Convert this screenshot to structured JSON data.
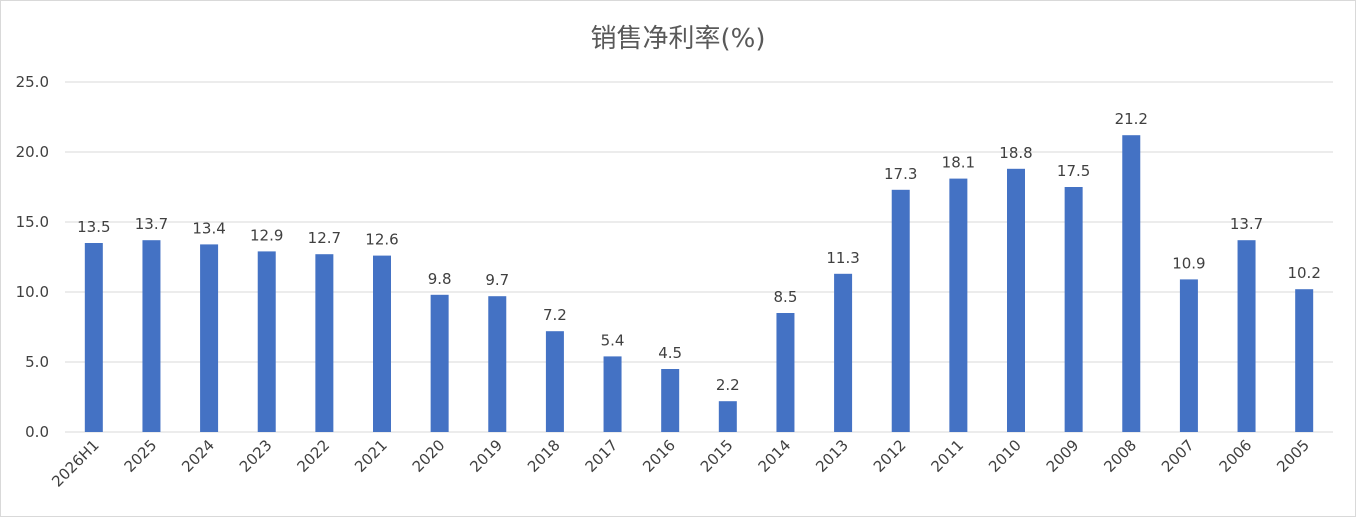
{
  "chart_data": {
    "type": "bar",
    "title": "销售净利率(%)",
    "xlabel": "",
    "ylabel": "",
    "categories": [
      "2026H1",
      "2025",
      "2024",
      "2023",
      "2022",
      "2021",
      "2020",
      "2019",
      "2018",
      "2017",
      "2016",
      "2015",
      "2014",
      "2013",
      "2012",
      "2011",
      "2010",
      "2009",
      "2008",
      "2007",
      "2006",
      "2005"
    ],
    "values": [
      13.5,
      13.7,
      13.4,
      12.9,
      12.7,
      12.6,
      9.8,
      9.7,
      7.2,
      5.4,
      4.5,
      2.2,
      8.5,
      11.3,
      17.3,
      18.1,
      18.8,
      17.5,
      21.2,
      10.9,
      13.7,
      10.2
    ],
    "data_labels": [
      "13.5",
      "13.7",
      "13.4",
      "12.9",
      "12.7",
      "12.6",
      "9.8",
      "9.7",
      "7.2",
      "5.4",
      "4.5",
      "2.2",
      "8.5",
      "11.3",
      "17.3",
      "18.1",
      "18.8",
      "17.5",
      "21.2",
      "10.9",
      "13.7",
      "10.2"
    ],
    "ylim": [
      0,
      25
    ],
    "yticks": [
      "0.0",
      "5.0",
      "10.0",
      "15.0",
      "20.0",
      "25.0"
    ],
    "grid": true,
    "legend": "none",
    "bar_color": "#4472C4"
  }
}
